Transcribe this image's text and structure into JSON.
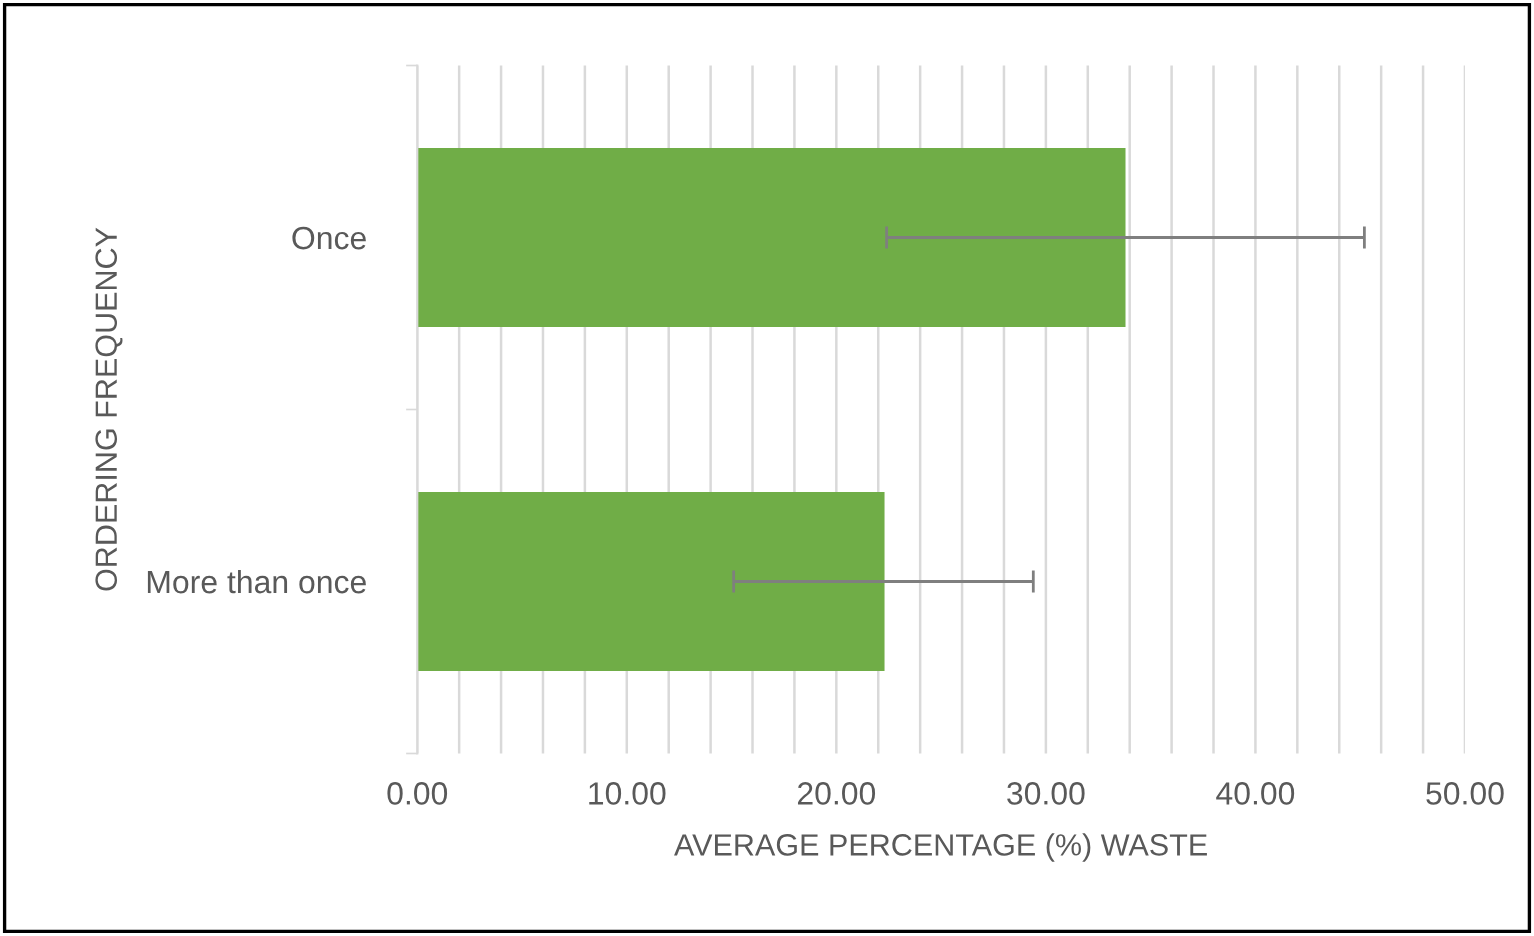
{
  "chart_data": {
    "type": "bar",
    "orientation": "horizontal",
    "xlabel": "AVERAGE PERCENTAGE (%) WASTE",
    "ylabel": "ORDERING FREQUENCY",
    "categories": [
      "Once",
      "More than once"
    ],
    "values": [
      33.8,
      22.3
    ],
    "errors": [
      [
        22.4,
        45.2
      ],
      [
        15.1,
        29.4
      ]
    ],
    "color": "#70ad47",
    "xlim": [
      0,
      50
    ],
    "xticks": [
      {
        "value": 0,
        "label": "0.00"
      },
      {
        "value": 10,
        "label": "10.00"
      },
      {
        "value": 20,
        "label": "20.00"
      },
      {
        "value": 30,
        "label": "30.00"
      },
      {
        "value": 40,
        "label": "40.00"
      },
      {
        "value": 50,
        "label": "50.00"
      }
    ],
    "grid": "x"
  }
}
